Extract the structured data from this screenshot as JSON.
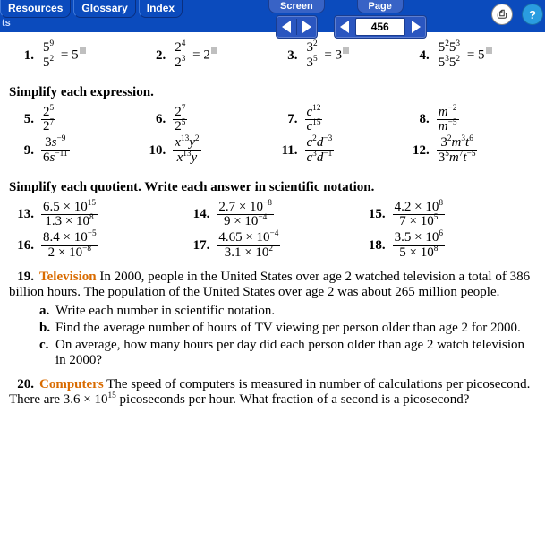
{
  "colors": {
    "bar": "#0b4bbd",
    "accent": "#d96b00"
  },
  "top": {
    "tabs": [
      "Resources",
      "Glossary",
      "Index"
    ],
    "sub": "ts",
    "screen": "Screen",
    "page": "Page",
    "pageNum": "456"
  },
  "icons": {
    "print": "⎙",
    "help": "?"
  },
  "h1": "Simplify each expression.",
  "h2": "Simplify each quotient. Write each answer in scientific notation.",
  "row1": [
    {
      "n": "1.",
      "fn": "5<sup>9</sup>",
      "fd": "5<sup>2</sup>",
      "rhs": " = 5"
    },
    {
      "n": "2.",
      "fn": "2<sup>4</sup>",
      "fd": "2<sup>3</sup>",
      "rhs": " = 2"
    },
    {
      "n": "3.",
      "fn": "3<sup>2</sup>",
      "fd": "3<sup>5</sup>",
      "rhs": " = 3"
    },
    {
      "n": "4.",
      "fn": "5<sup>2</sup>5<sup>3</sup>",
      "fd": "5<sup>3</sup>5<sup>2</sup>",
      "rhs": " = 5"
    }
  ],
  "row2": [
    {
      "n": "5.",
      "fn": "2<sup>5</sup>",
      "fd": "2<sup>7</sup>"
    },
    {
      "n": "6.",
      "fn": "2<sup>7</sup>",
      "fd": "2<sup>5</sup>"
    },
    {
      "n": "7.",
      "fn": "<span class='it'>c</span><sup>12</sup>",
      "fd": "<span class='it'>c</span><sup>15</sup>"
    },
    {
      "n": "8.",
      "fn": "<span class='it'>m</span><sup>−2</sup>",
      "fd": "<span class='it'>m</span><sup>−5</sup>"
    }
  ],
  "row3": [
    {
      "n": "9.",
      "fn": "3<span class='it'>s</span><sup>−9</sup>",
      "fd": "6<span class='it'>s</span><sup>−11</sup>"
    },
    {
      "n": "10.",
      "fn": "<span class='it'>x</span><sup>13</sup><span class='it'>y</span><sup>2</sup>",
      "fd": "<span class='it'>x</span><sup>13</sup><span class='it'>y</span>"
    },
    {
      "n": "11.",
      "fn": "<span class='it'>c</span><sup>2</sup><span class='it'>d</span><sup>−3</sup>",
      "fd": "<span class='it'>c</span><sup>3</sup><span class='it'>d</span><sup>−1</sup>"
    },
    {
      "n": "12.",
      "fn": "3<sup>2</sup><span class='it'>m</span><sup>3</sup><span class='it'>t</span><sup>6</sup>",
      "fd": "3<sup>5</sup><span class='it'>m</span><sup>7</sup><span class='it'>t</span><sup>−5</sup>"
    }
  ],
  "row4": [
    {
      "n": "13.",
      "fn": "6.5 × 10<sup>15</sup>",
      "fd": "1.3 × 10<sup>8</sup>"
    },
    {
      "n": "14.",
      "fn": "2.7 × 10<sup>−8</sup>",
      "fd": "9 × 10<sup>−4</sup>"
    },
    {
      "n": "15.",
      "fn": "4.2 × 10<sup>8</sup>",
      "fd": "7 × 10<sup>5</sup>"
    }
  ],
  "row5": [
    {
      "n": "16.",
      "fn": "8.4 × 10<sup>−5</sup>",
      "fd": "2 × 10<sup>−8</sup>"
    },
    {
      "n": "17.",
      "fn": "4.65 × 10<sup>−4</sup>",
      "fd": "3.1 × 10<sup>2</sup>"
    },
    {
      "n": "18.",
      "fn": "3.5 × 10<sup>6</sup>",
      "fd": "5 × 10<sup>8</sup>"
    }
  ],
  "q19": {
    "n": "19.",
    "topic": "Television",
    "text": "  In 2000, people in the United States over age 2 watched television a total of 386 billion hours. The population of the United States over age 2 was about 265 million people.",
    "a": "Write each number in scientific notation.",
    "b": "Find the average number of hours of TV viewing per person older than age 2 for 2000.",
    "c": "On average, how many hours per day did each person older than age 2 watch television in 2000?"
  },
  "q20": {
    "n": "20.",
    "topic": "Computers",
    "text": "  The speed of computers is measured in number of calculations per picosecond. There are 3.6 × 10<sup>15</sup> picoseconds per hour. What fraction of a second is a picosecond?"
  }
}
